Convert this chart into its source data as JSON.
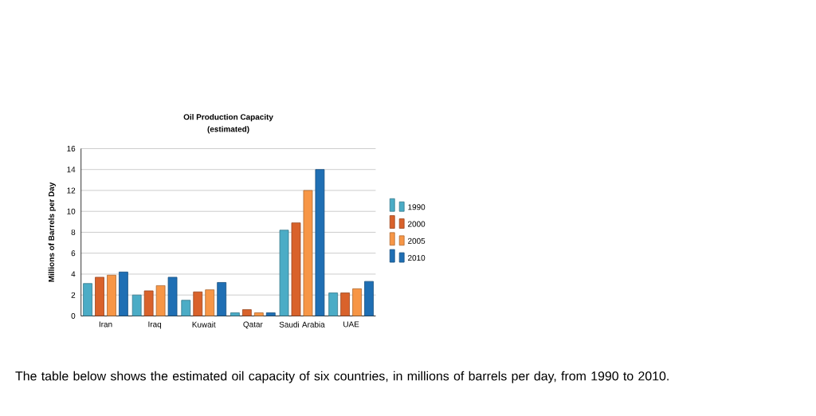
{
  "chart_data": {
    "type": "bar",
    "title": "Oil Production Capacity",
    "subtitle": "(estimated)",
    "ylabel": "Millions of Barrels per Day",
    "categories": [
      "Iran",
      "Iraq",
      "Kuwait",
      "Qatar",
      "Saudi Arabia",
      "UAE"
    ],
    "series": [
      {
        "name": "1990",
        "color": "#4bacc6",
        "values": [
          3.1,
          2.0,
          1.5,
          0.3,
          8.2,
          2.2
        ]
      },
      {
        "name": "2000",
        "color": "#d9622b",
        "values": [
          3.7,
          2.4,
          2.3,
          0.6,
          8.9,
          2.2
        ]
      },
      {
        "name": "2005",
        "color": "#f79646",
        "values": [
          3.9,
          2.9,
          2.5,
          0.3,
          12,
          2.6
        ]
      },
      {
        "name": "2010",
        "color": "#1f6fb4",
        "values": [
          4.2,
          3.7,
          3.2,
          0.3,
          14,
          3.3
        ]
      }
    ],
    "ylim": [
      0,
      16
    ],
    "yticks": [
      0,
      2,
      4,
      6,
      8,
      10,
      12,
      14,
      16
    ],
    "grid": "y",
    "legend": "right",
    "annotations": [
      "The table below shows the estimated oil capacity of six countries, in millions of barrels per day, from 1990 to 2010."
    ]
  }
}
